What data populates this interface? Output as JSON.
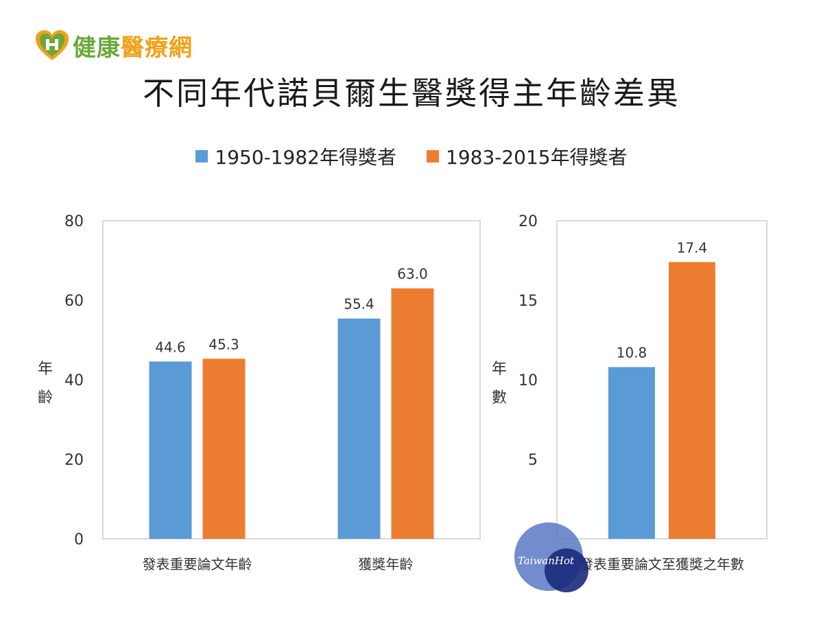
{
  "brand": {
    "part1": "健康",
    "part2": "醫療網"
  },
  "title": "不同年代諾貝爾生醫獎得主年齡差異",
  "watermark": "TaiwanHot",
  "colors": {
    "series1": "#5b9bd5",
    "series2": "#ed7d31",
    "axis": "#d9d9d9",
    "brand_green": "#6aa83a",
    "brand_orange": "#f0a21c"
  },
  "legend": [
    {
      "label": "1950-1982年得獎者",
      "color": "#5b9bd5"
    },
    {
      "label": "1983-2015年得獎者",
      "color": "#ed7d31"
    }
  ],
  "chart_data": [
    {
      "type": "bar",
      "categories": [
        "發表重要論文年齡",
        "獲獎年齡"
      ],
      "series": [
        {
          "name": "1950-1982年得獎者",
          "values": [
            44.6,
            55.4
          ],
          "labels": [
            "44.6",
            "55.4"
          ]
        },
        {
          "name": "1983-2015年得獎者",
          "values": [
            45.3,
            63.0
          ],
          "labels": [
            "45.3",
            "63.0"
          ]
        }
      ],
      "ylabel": [
        "年",
        "齡"
      ],
      "ylim": [
        0,
        80
      ],
      "yticks": [
        0,
        20,
        40,
        60,
        80
      ],
      "grid": false
    },
    {
      "type": "bar",
      "categories": [
        "發表重要論文至獲獎之年數"
      ],
      "series": [
        {
          "name": "1950-1982年得獎者",
          "values": [
            10.8
          ],
          "labels": [
            "10.8"
          ]
        },
        {
          "name": "1983-2015年得獎者",
          "values": [
            17.4
          ],
          "labels": [
            "17.4"
          ]
        }
      ],
      "ylabel": [
        "年",
        "數"
      ],
      "ylim": [
        0,
        20
      ],
      "yticks": [
        5,
        10,
        15,
        20
      ],
      "grid": false
    }
  ]
}
